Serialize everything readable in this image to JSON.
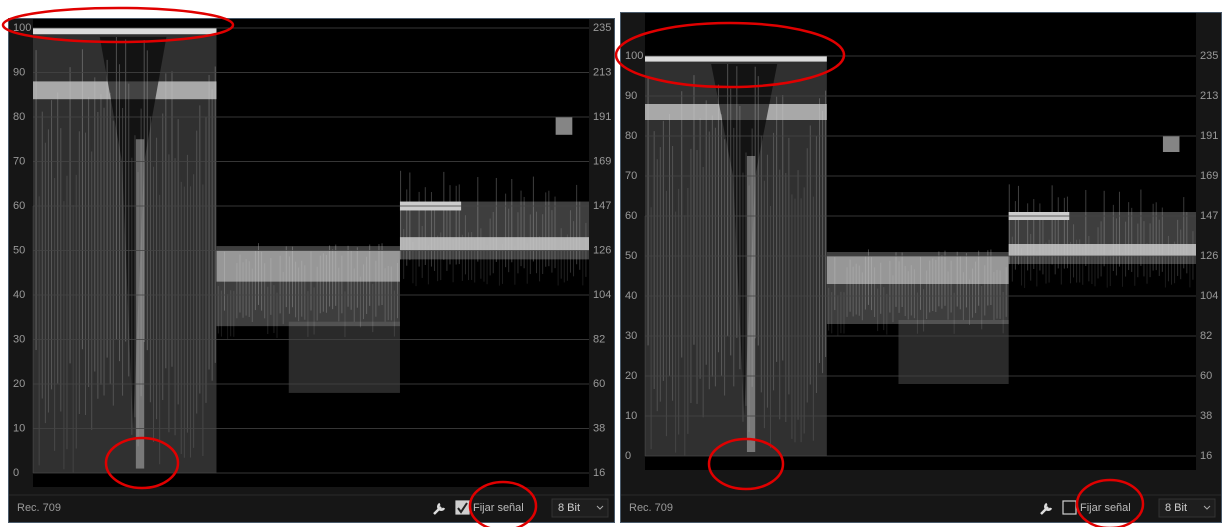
{
  "panels": [
    {
      "left_scale": [
        100,
        90,
        80,
        70,
        60,
        50,
        40,
        30,
        20,
        10,
        0
      ],
      "right_scale": [
        235,
        213,
        191,
        169,
        147,
        126,
        104,
        82,
        60,
        38,
        16
      ],
      "status": "Rec. 709",
      "lock_label": "Fijar señal",
      "lock_checked": true,
      "bit_depth": "8 Bit"
    },
    {
      "left_scale": [
        100,
        90,
        80,
        70,
        60,
        50,
        40,
        30,
        20,
        10,
        0
      ],
      "right_scale": [
        235,
        213,
        191,
        169,
        147,
        126,
        104,
        82,
        60,
        38,
        16
      ],
      "status": "Rec. 709",
      "lock_label": "Fijar señal",
      "lock_checked": false,
      "bit_depth": "8 Bit"
    }
  ]
}
